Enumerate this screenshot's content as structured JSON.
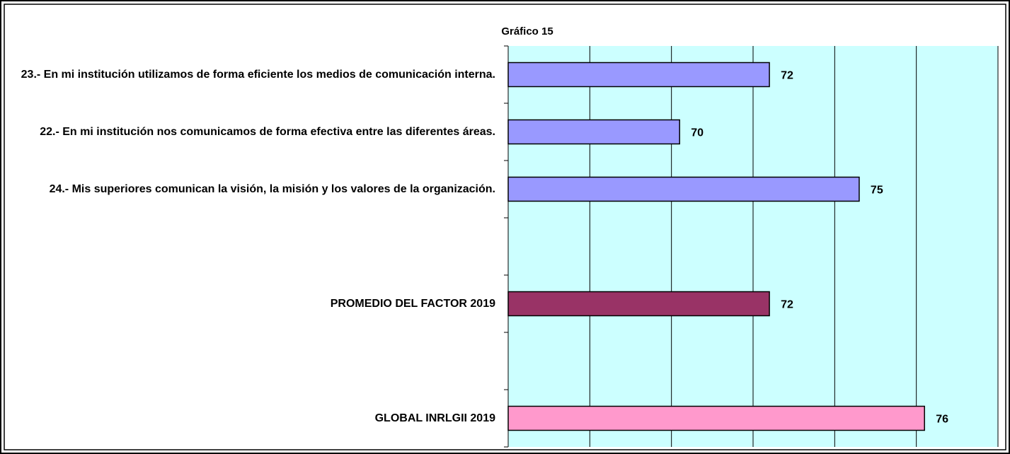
{
  "chart_data": {
    "type": "bar",
    "orientation": "horizontal",
    "title": "Gráfico 15",
    "categories": [
      "23.- En mi institución utilizamos de forma eficiente los medios de comunicación interna.",
      "22.- En mi institución nos comunicamos de forma efectiva entre las diferentes áreas.",
      "24.- Mis superiores comunican la visión, la misión y los valores de la organización.",
      null,
      "PROMEDIO DEL FACTOR   2019",
      null,
      "GLOBAL INRLGII  2019"
    ],
    "values": [
      72.4,
      70.2,
      74.6,
      null,
      72.4,
      null,
      76.2
    ],
    "value_labels": [
      "72",
      "70",
      "75",
      null,
      "72",
      null,
      "76"
    ],
    "colors": [
      "#9999ff",
      "#9999ff",
      "#9999ff",
      null,
      "#993366",
      null,
      "#ff99cc"
    ],
    "xlim": [
      66,
      78
    ],
    "xticks": [
      66,
      68,
      70,
      72,
      74,
      76,
      78
    ],
    "grid": true,
    "background": "#ccffff"
  }
}
